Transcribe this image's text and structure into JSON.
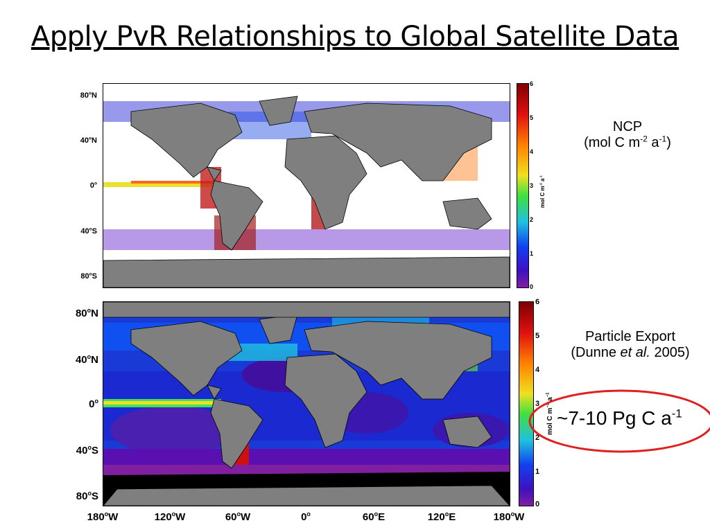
{
  "slide": {
    "title": "Apply PvR Relationships to Global Satellite Data"
  },
  "top_map": {
    "lat_labels": [
      "80",
      "40",
      "0",
      "40",
      "80"
    ],
    "lat_suffixes": [
      "N",
      "N",
      "",
      "S",
      "S"
    ],
    "colorbar": {
      "ticks": [
        "6",
        "5",
        "4",
        "3",
        "2",
        "1",
        "0"
      ],
      "label": "mol C m",
      "label_exp1": "-2",
      "label_mid": " a",
      "label_exp2": "-1"
    },
    "annotation": {
      "line1": "NCP",
      "line2_prefix": "(mol C m",
      "exp1": "-2",
      "mid": " a",
      "exp2": "-1",
      "suffix": ")"
    }
  },
  "bottom_map": {
    "lat_labels": [
      "80",
      "40",
      "0",
      "40",
      "80"
    ],
    "lat_suffixes": [
      "N",
      "N",
      "",
      "S",
      "S"
    ],
    "lon_labels": [
      "180",
      "120",
      "60",
      "0",
      "60",
      "120",
      "180"
    ],
    "lon_suffixes": [
      "W",
      "W",
      "W",
      "",
      "E",
      "E",
      "W"
    ],
    "colorbar": {
      "ticks": [
        "6",
        "5",
        "4",
        "3",
        "2",
        "1",
        "0"
      ],
      "label": "mol C m",
      "label_exp1": "−2",
      "label_mid": " a",
      "label_exp2": "−1"
    },
    "annotation": {
      "line1": "Particle Export",
      "line2_prefix": "(Dunne ",
      "italic": "et al.",
      "line2_suffix": " 2005)"
    },
    "total": {
      "text": "~7-10 Pg C a",
      "exp": "-1"
    }
  },
  "colors": {
    "land": "#7f7f7f",
    "ocean_empty": "#ffffff",
    "ice": "#000000",
    "highlight_ellipse": "#e02020"
  }
}
